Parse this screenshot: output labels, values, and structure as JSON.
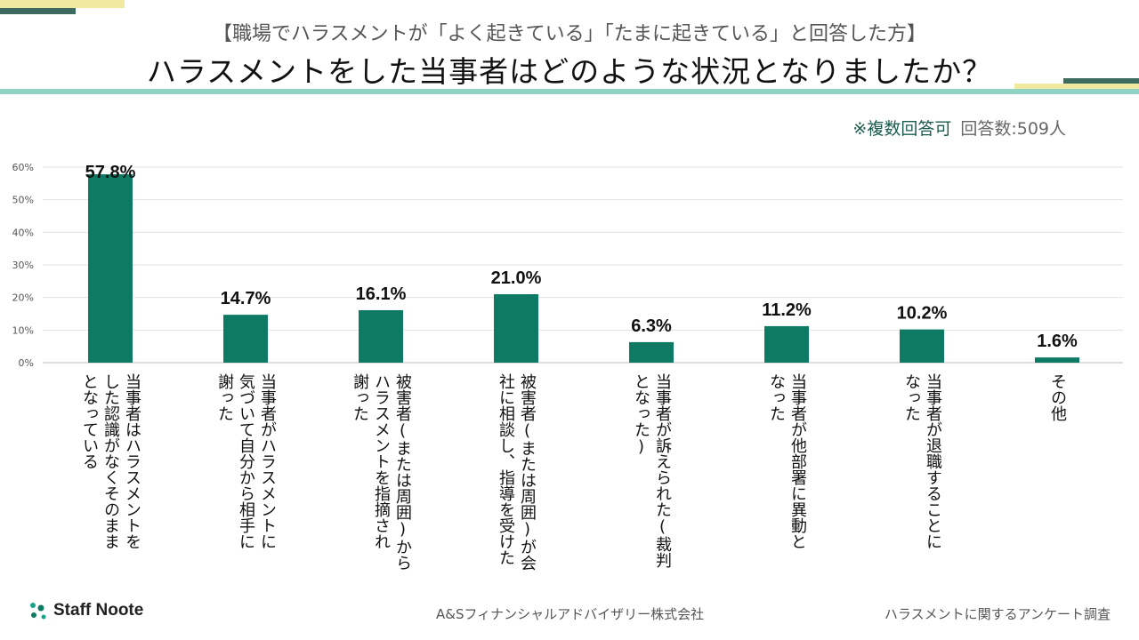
{
  "header": {
    "subtitle": "【職場でハラスメントが「よく起きている」「たまに起きている」と回答した方】",
    "title": "ハラスメントをした当事者はどのような状況となりましたか？"
  },
  "note": {
    "multiple": "※複数回答可",
    "responses": "回答数:509人"
  },
  "colors": {
    "bar": "#0e7a63",
    "accent_green": "#8fd3c4",
    "accent_yellow": "#f0eaa0",
    "dark": "#3d6b5e"
  },
  "chart_data": {
    "type": "bar",
    "title": "ハラスメントをした当事者はどのような状況となりましたか？",
    "categories": [
      "当事者はハラスメントを\nした認識がなくそのまま\nとなっている",
      "当事者がハラスメントに\n気づいて自分から相手に\n謝った",
      "被害者(または周囲)から\nハラスメントを指摘され\n謝った",
      "被害者(または周囲)が会\n社に相談し、指導を受けた",
      "当事者が訴えられた(裁判\nとなった)",
      "当事者が他部署に異動と\nなった",
      "当事者が退職することに\nなった",
      "その他"
    ],
    "values": [
      57.8,
      14.7,
      16.1,
      21.0,
      6.3,
      11.2,
      10.2,
      1.6
    ],
    "value_labels": [
      "57.8%",
      "14.7%",
      "16.1%",
      "21.0%",
      "6.3%",
      "11.2%",
      "10.2%",
      "1.6%"
    ],
    "ylim": [
      0,
      60
    ],
    "yticks": [
      0,
      10,
      20,
      30,
      40,
      50,
      60
    ],
    "ytick_labels": [
      "0%",
      "10%",
      "20%",
      "30%",
      "40%",
      "50%",
      "60%"
    ],
    "xlabel": "",
    "ylabel": "",
    "grid": true
  },
  "footer": {
    "logo": "Staff Noote",
    "company": "A&Sフィナンシャルアドバイザリー株式会社",
    "survey": "ハラスメントに関するアンケート調査"
  }
}
